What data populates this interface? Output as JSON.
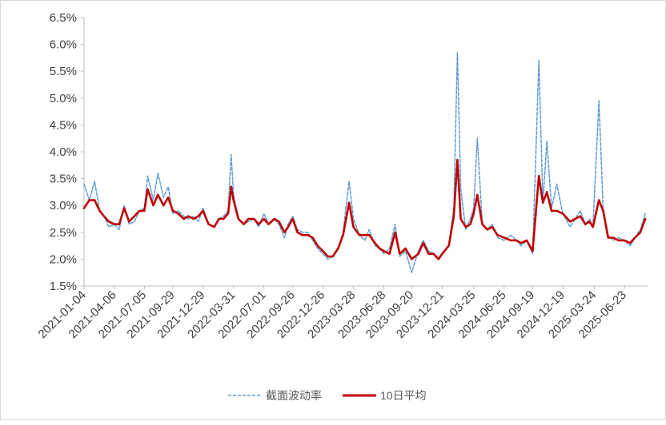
{
  "chart_data": {
    "type": "line",
    "title": "",
    "xlabel": "",
    "ylabel": "",
    "ylim": [
      0.015,
      0.065
    ],
    "ytick_labels": [
      "1.5%",
      "2.0%",
      "2.5%",
      "3.0%",
      "3.5%",
      "4.0%",
      "4.5%",
      "5.0%",
      "5.5%",
      "6.0%",
      "6.5%"
    ],
    "xtick_labels": [
      "2021-01-04",
      "2021-04-06",
      "2021-07-05",
      "2021-09-29",
      "2021-12-29",
      "2022-03-31",
      "2022-07-01",
      "2022-09-26",
      "2022-12-26",
      "2023-03-28",
      "2023-06-28",
      "2023-09-20",
      "2023-12-21",
      "2024-03-25",
      "2024-06-25",
      "2024-09-19",
      "2024-12-19",
      "2025-03-24",
      "2025-06-23"
    ],
    "grid": false,
    "legend": "bottom",
    "series": [
      {
        "name": "截面波动率",
        "style": "dashed",
        "color": "#5b9bd5",
        "points": [
          [
            "2021-01-04",
            0.034
          ],
          [
            "2021-01-20",
            0.031
          ],
          [
            "2021-02-05",
            0.0345
          ],
          [
            "2021-02-20",
            0.029
          ],
          [
            "2021-03-05",
            0.028
          ],
          [
            "2021-03-20",
            0.026
          ],
          [
            "2021-04-06",
            0.0265
          ],
          [
            "2021-04-20",
            0.0255
          ],
          [
            "2021-05-05",
            0.03
          ],
          [
            "2021-05-20",
            0.0265
          ],
          [
            "2021-06-05",
            0.027
          ],
          [
            "2021-06-20",
            0.029
          ],
          [
            "2021-07-05",
            0.0295
          ],
          [
            "2021-07-15",
            0.0355
          ],
          [
            "2021-08-01",
            0.031
          ],
          [
            "2021-08-15",
            0.036
          ],
          [
            "2021-09-01",
            0.0315
          ],
          [
            "2021-09-15",
            0.0335
          ],
          [
            "2021-09-29",
            0.0285
          ],
          [
            "2021-10-15",
            0.029
          ],
          [
            "2021-11-01",
            0.028
          ],
          [
            "2021-11-15",
            0.0275
          ],
          [
            "2021-12-01",
            0.028
          ],
          [
            "2021-12-15",
            0.027
          ],
          [
            "2021-12-29",
            0.0295
          ],
          [
            "2022-01-15",
            0.0265
          ],
          [
            "2022-02-01",
            0.026
          ],
          [
            "2022-02-15",
            0.0275
          ],
          [
            "2022-03-01",
            0.028
          ],
          [
            "2022-03-15",
            0.029
          ],
          [
            "2022-03-24",
            0.0395
          ],
          [
            "2022-03-31",
            0.032
          ],
          [
            "2022-04-15",
            0.0275
          ],
          [
            "2022-05-01",
            0.0265
          ],
          [
            "2022-05-15",
            0.027
          ],
          [
            "2022-06-01",
            0.0275
          ],
          [
            "2022-06-15",
            0.026
          ],
          [
            "2022-07-01",
            0.0285
          ],
          [
            "2022-07-15",
            0.0265
          ],
          [
            "2022-08-01",
            0.0275
          ],
          [
            "2022-08-15",
            0.0265
          ],
          [
            "2022-09-01",
            0.024
          ],
          [
            "2022-09-12",
            0.0265
          ],
          [
            "2022-09-26",
            0.028
          ],
          [
            "2022-10-10",
            0.0255
          ],
          [
            "2022-10-25",
            0.025
          ],
          [
            "2022-11-10",
            0.025
          ],
          [
            "2022-11-25",
            0.0235
          ],
          [
            "2022-12-10",
            0.022
          ],
          [
            "2022-12-26",
            0.021
          ],
          [
            "2023-01-10",
            0.02
          ],
          [
            "2023-01-25",
            0.0205
          ],
          [
            "2023-02-10",
            0.022
          ],
          [
            "2023-02-25",
            0.025
          ],
          [
            "2023-03-15",
            0.0345
          ],
          [
            "2023-03-28",
            0.0275
          ],
          [
            "2023-04-15",
            0.0245
          ],
          [
            "2023-05-01",
            0.0235
          ],
          [
            "2023-05-15",
            0.0255
          ],
          [
            "2023-06-01",
            0.0225
          ],
          [
            "2023-06-15",
            0.022
          ],
          [
            "2023-06-28",
            0.021
          ],
          [
            "2023-07-15",
            0.022
          ],
          [
            "2023-08-01",
            0.0265
          ],
          [
            "2023-08-15",
            0.0205
          ],
          [
            "2023-09-01",
            0.0215
          ],
          [
            "2023-09-20",
            0.0175
          ],
          [
            "2023-10-10",
            0.0215
          ],
          [
            "2023-10-25",
            0.0235
          ],
          [
            "2023-11-10",
            0.0215
          ],
          [
            "2023-11-25",
            0.021
          ],
          [
            "2023-12-10",
            0.02
          ],
          [
            "2023-12-21",
            0.021
          ],
          [
            "2024-01-10",
            0.0225
          ],
          [
            "2024-01-25",
            0.0295
          ],
          [
            "2024-02-05",
            0.0585
          ],
          [
            "2024-02-15",
            0.033
          ],
          [
            "2024-03-01",
            0.0255
          ],
          [
            "2024-03-15",
            0.0275
          ],
          [
            "2024-03-25",
            0.0295
          ],
          [
            "2024-04-05",
            0.0425
          ],
          [
            "2024-04-20",
            0.0265
          ],
          [
            "2024-05-05",
            0.0255
          ],
          [
            "2024-05-20",
            0.0265
          ],
          [
            "2024-06-05",
            0.024
          ],
          [
            "2024-06-25",
            0.0235
          ],
          [
            "2024-07-15",
            0.0245
          ],
          [
            "2024-08-01",
            0.0235
          ],
          [
            "2024-08-15",
            0.0225
          ],
          [
            "2024-09-01",
            0.0235
          ],
          [
            "2024-09-19",
            0.021
          ],
          [
            "2024-10-08",
            0.057
          ],
          [
            "2024-10-20",
            0.0305
          ],
          [
            "2024-11-01",
            0.042
          ],
          [
            "2024-11-15",
            0.0295
          ],
          [
            "2024-12-01",
            0.034
          ],
          [
            "2024-12-19",
            0.0285
          ],
          [
            "2025-01-10",
            0.026
          ],
          [
            "2025-01-25",
            0.0275
          ],
          [
            "2025-02-10",
            0.029
          ],
          [
            "2025-02-25",
            0.0265
          ],
          [
            "2025-03-10",
            0.0275
          ],
          [
            "2025-03-20",
            0.026
          ],
          [
            "2025-04-07",
            0.0495
          ],
          [
            "2025-04-20",
            0.0295
          ],
          [
            "2025-05-05",
            0.0245
          ],
          [
            "2025-05-20",
            0.0235
          ],
          [
            "2025-06-05",
            0.024
          ],
          [
            "2025-06-23",
            0.0235
          ],
          [
            "2025-07-10",
            0.0225
          ],
          [
            "2025-07-25",
            0.024
          ],
          [
            "2025-08-10",
            0.0255
          ],
          [
            "2025-08-25",
            0.0285
          ]
        ]
      },
      {
        "name": "10日平均",
        "style": "solid",
        "color": "#c00000",
        "points": [
          [
            "2021-01-04",
            0.0295
          ],
          [
            "2021-01-20",
            0.031
          ],
          [
            "2021-02-05",
            0.031
          ],
          [
            "2021-02-20",
            0.029
          ],
          [
            "2021-03-05",
            0.028
          ],
          [
            "2021-03-20",
            0.027
          ],
          [
            "2021-04-06",
            0.0265
          ],
          [
            "2021-04-20",
            0.0265
          ],
          [
            "2021-05-05",
            0.0295
          ],
          [
            "2021-05-20",
            0.027
          ],
          [
            "2021-06-05",
            0.028
          ],
          [
            "2021-06-20",
            0.029
          ],
          [
            "2021-07-05",
            0.029
          ],
          [
            "2021-07-15",
            0.033
          ],
          [
            "2021-08-01",
            0.03
          ],
          [
            "2021-08-15",
            0.032
          ],
          [
            "2021-09-01",
            0.03
          ],
          [
            "2021-09-15",
            0.0315
          ],
          [
            "2021-09-29",
            0.029
          ],
          [
            "2021-10-15",
            0.0285
          ],
          [
            "2021-11-01",
            0.0275
          ],
          [
            "2021-11-15",
            0.028
          ],
          [
            "2021-12-01",
            0.0275
          ],
          [
            "2021-12-15",
            0.028
          ],
          [
            "2021-12-29",
            0.029
          ],
          [
            "2022-01-15",
            0.0265
          ],
          [
            "2022-02-01",
            0.026
          ],
          [
            "2022-02-15",
            0.0275
          ],
          [
            "2022-03-01",
            0.0275
          ],
          [
            "2022-03-15",
            0.0285
          ],
          [
            "2022-03-24",
            0.0335
          ],
          [
            "2022-03-31",
            0.031
          ],
          [
            "2022-04-15",
            0.0275
          ],
          [
            "2022-05-01",
            0.0265
          ],
          [
            "2022-05-15",
            0.0275
          ],
          [
            "2022-06-01",
            0.0275
          ],
          [
            "2022-06-15",
            0.0265
          ],
          [
            "2022-07-01",
            0.0275
          ],
          [
            "2022-07-15",
            0.0265
          ],
          [
            "2022-08-01",
            0.0275
          ],
          [
            "2022-08-15",
            0.027
          ],
          [
            "2022-09-01",
            0.025
          ],
          [
            "2022-09-12",
            0.026
          ],
          [
            "2022-09-26",
            0.0275
          ],
          [
            "2022-10-10",
            0.025
          ],
          [
            "2022-10-25",
            0.0245
          ],
          [
            "2022-11-10",
            0.0245
          ],
          [
            "2022-11-25",
            0.024
          ],
          [
            "2022-12-10",
            0.0225
          ],
          [
            "2022-12-26",
            0.0215
          ],
          [
            "2023-01-10",
            0.0205
          ],
          [
            "2023-01-25",
            0.0205
          ],
          [
            "2023-02-10",
            0.022
          ],
          [
            "2023-02-25",
            0.0245
          ],
          [
            "2023-03-15",
            0.0305
          ],
          [
            "2023-03-28",
            0.026
          ],
          [
            "2023-04-15",
            0.0245
          ],
          [
            "2023-05-01",
            0.0245
          ],
          [
            "2023-05-15",
            0.0245
          ],
          [
            "2023-06-01",
            0.023
          ],
          [
            "2023-06-15",
            0.022
          ],
          [
            "2023-06-28",
            0.0215
          ],
          [
            "2023-07-15",
            0.021
          ],
          [
            "2023-08-01",
            0.025
          ],
          [
            "2023-08-15",
            0.021
          ],
          [
            "2023-09-01",
            0.022
          ],
          [
            "2023-09-20",
            0.02
          ],
          [
            "2023-10-10",
            0.021
          ],
          [
            "2023-10-25",
            0.023
          ],
          [
            "2023-11-10",
            0.021
          ],
          [
            "2023-11-25",
            0.021
          ],
          [
            "2023-12-10",
            0.02
          ],
          [
            "2023-12-21",
            0.021
          ],
          [
            "2024-01-10",
            0.0225
          ],
          [
            "2024-01-25",
            0.028
          ],
          [
            "2024-02-05",
            0.0385
          ],
          [
            "2024-02-15",
            0.0275
          ],
          [
            "2024-03-01",
            0.026
          ],
          [
            "2024-03-15",
            0.0265
          ],
          [
            "2024-03-25",
            0.0285
          ],
          [
            "2024-04-05",
            0.032
          ],
          [
            "2024-04-20",
            0.0265
          ],
          [
            "2024-05-05",
            0.0255
          ],
          [
            "2024-05-20",
            0.026
          ],
          [
            "2024-06-05",
            0.0245
          ],
          [
            "2024-06-25",
            0.024
          ],
          [
            "2024-07-15",
            0.0235
          ],
          [
            "2024-08-01",
            0.0235
          ],
          [
            "2024-08-15",
            0.023
          ],
          [
            "2024-09-01",
            0.0235
          ],
          [
            "2024-09-19",
            0.0215
          ],
          [
            "2024-10-08",
            0.0355
          ],
          [
            "2024-10-20",
            0.0305
          ],
          [
            "2024-11-01",
            0.0325
          ],
          [
            "2024-11-15",
            0.029
          ],
          [
            "2024-12-01",
            0.029
          ],
          [
            "2024-12-19",
            0.0285
          ],
          [
            "2025-01-10",
            0.027
          ],
          [
            "2025-01-25",
            0.0275
          ],
          [
            "2025-02-10",
            0.028
          ],
          [
            "2025-02-25",
            0.0265
          ],
          [
            "2025-03-10",
            0.027
          ],
          [
            "2025-03-20",
            0.026
          ],
          [
            "2025-04-07",
            0.031
          ],
          [
            "2025-04-20",
            0.029
          ],
          [
            "2025-05-05",
            0.024
          ],
          [
            "2025-05-20",
            0.024
          ],
          [
            "2025-06-05",
            0.0235
          ],
          [
            "2025-06-23",
            0.0235
          ],
          [
            "2025-07-10",
            0.023
          ],
          [
            "2025-07-25",
            0.024
          ],
          [
            "2025-08-10",
            0.025
          ],
          [
            "2025-08-25",
            0.0275
          ]
        ]
      }
    ]
  }
}
